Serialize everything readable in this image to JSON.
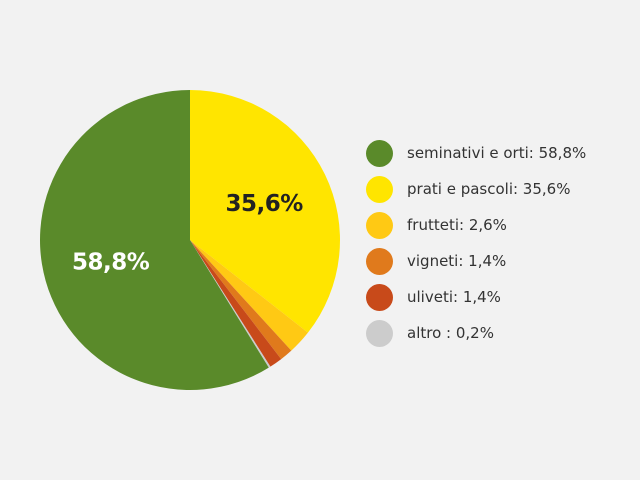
{
  "chart_data": {
    "type": "pie",
    "categories": [
      "seminativi e orti",
      "prati e pascoli",
      "frutteti",
      "vigneti",
      "uliveti",
      "altro"
    ],
    "values": [
      58.8,
      35.6,
      2.6,
      1.4,
      1.4,
      0.2
    ],
    "colors": [
      "#5a8a2a",
      "#ffe500",
      "#ffc914",
      "#e07a1c",
      "#c84a1a",
      "#cccccc"
    ],
    "slice_labels": [
      {
        "index": 0,
        "text": "58,8%",
        "color": "#ffffff"
      },
      {
        "index": 1,
        "text": "35,6%",
        "color": "#222222"
      }
    ],
    "legend": {
      "placement": "right",
      "entries": [
        "seminativi e orti: 58,8%",
        "prati e pascoli: 35,6%",
        "frutteti: 2,6%",
        "vigneti: 1,4%",
        "uliveti: 1,4%",
        "altro : 0,2%"
      ]
    }
  }
}
